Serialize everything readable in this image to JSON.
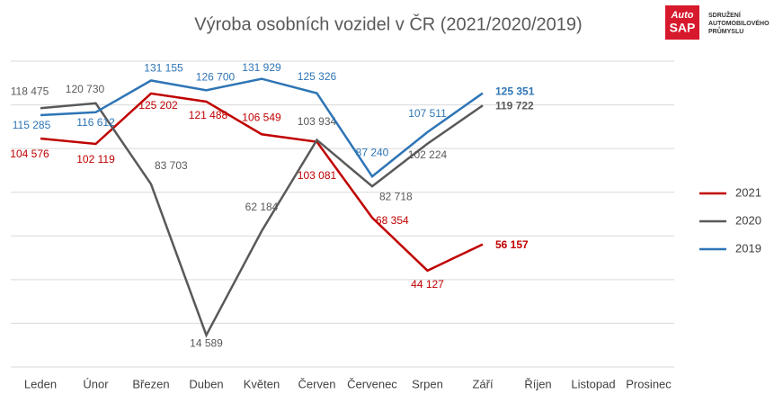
{
  "logo": {
    "top": "Auto",
    "bottom": "SAP",
    "lines": [
      "SDRUŽENÍ",
      "AUTOMOBILOVÉHO",
      "PRŮMYSLU"
    ]
  },
  "chart_data": {
    "type": "line",
    "title": "Výroba osobních vozidel v ČR (2021/2020/2019)",
    "categories": [
      "Leden",
      "Únor",
      "Březen",
      "Duben",
      "Květen",
      "Červen",
      "Červenec",
      "Srpen",
      "Září",
      "Říjen",
      "Listopad",
      "Prosinec"
    ],
    "ylim": [
      0,
      140000
    ],
    "yticks": [
      0,
      20000,
      40000,
      60000,
      80000,
      100000,
      120000,
      140000
    ],
    "grid": true,
    "legend": "right",
    "series": [
      {
        "name": "2021",
        "color": "#c00000",
        "values": [
          104576,
          102119,
          125202,
          121488,
          106549,
          103081,
          68354,
          44127,
          56157,
          null,
          null,
          null
        ],
        "value_labels": [
          "104 576",
          "102 119",
          "125 202",
          "121 488",
          "106 549",
          "103 081",
          "68 354",
          "44 127",
          "56 157",
          null,
          null,
          null
        ]
      },
      {
        "name": "2020",
        "color": "#595959",
        "values": [
          118475,
          120730,
          83703,
          14589,
          62184,
          103934,
          82718,
          102224,
          119722,
          null,
          null,
          null
        ],
        "value_labels": [
          "118 475",
          "120 730",
          "83 703",
          "14 589",
          "62 184",
          "103 934",
          "82 718",
          "102 224",
          "119 722",
          null,
          null,
          null
        ]
      },
      {
        "name": "2019",
        "color": "#2e75b6",
        "values": [
          115285,
          116612,
          131155,
          126700,
          131929,
          125326,
          87240,
          107511,
          125351,
          null,
          null,
          null
        ],
        "value_labels": [
          "115 285",
          "116 612",
          "131 155",
          "126 700",
          "131 929",
          "125 326",
          "87 240",
          "107 511",
          "125 351",
          null,
          null,
          null
        ]
      }
    ]
  }
}
